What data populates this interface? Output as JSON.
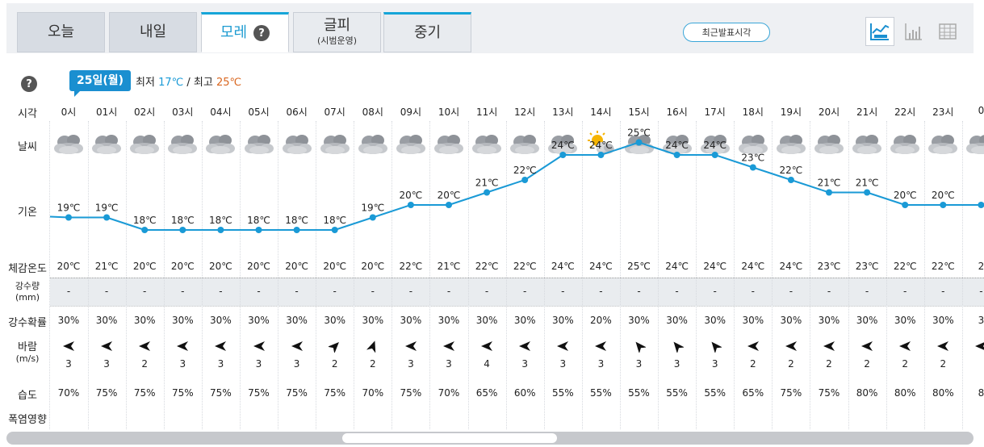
{
  "tabs": [
    {
      "label": "오늘",
      "sub": ""
    },
    {
      "label": "내일",
      "sub": ""
    },
    {
      "label": "모레",
      "sub": "",
      "help": "?"
    },
    {
      "label": "글피",
      "sub": "(시범운영)"
    },
    {
      "label": "중기",
      "sub": ""
    }
  ],
  "recent_button": "최근발표시각",
  "view_icons": [
    "line-chart-icon",
    "bar-chart-icon",
    "table-icon"
  ],
  "help": "?",
  "date": {
    "badge": "25일(월)",
    "min_label": "최저",
    "min": "17℃",
    "sep": "/",
    "max_label": "최고",
    "max": "25℃"
  },
  "row_labels": {
    "hour": "시각",
    "weather": "날씨",
    "temp": "기온",
    "feel": "체감온도",
    "precip": "강수량",
    "precip_unit": "(mm)",
    "prob": "강수확률",
    "wind": "바람",
    "wind_unit": "(m/s)",
    "humidity": "습도",
    "heat": "폭염영향"
  },
  "colors": {
    "accent": "#1a8fd0",
    "min": "#1a9ad6",
    "max": "#d9661f",
    "line": "#1a9ad6"
  },
  "hours": [
    "0시",
    "01시",
    "02시",
    "03시",
    "04시",
    "05시",
    "06시",
    "07시",
    "08시",
    "09시",
    "10시",
    "11시",
    "12시",
    "13시",
    "14시",
    "15시",
    "16시",
    "17시",
    "18시",
    "19시",
    "20시",
    "21시",
    "22시",
    "23시",
    "0"
  ],
  "weather": [
    "cloudy",
    "cloudy",
    "cloudy",
    "cloudy",
    "cloudy",
    "cloudy",
    "cloudy",
    "cloudy",
    "cloudy",
    "cloudy",
    "cloudy",
    "cloudy",
    "cloudy",
    "cloudy",
    "partly-sunny",
    "cloudy",
    "cloudy",
    "cloudy",
    "cloudy",
    "cloudy",
    "cloudy",
    "cloudy",
    "cloudy",
    "cloudy",
    "cloudy"
  ],
  "temps": [
    19,
    19,
    18,
    18,
    18,
    18,
    18,
    18,
    19,
    20,
    20,
    21,
    22,
    24,
    24,
    25,
    24,
    24,
    23,
    22,
    21,
    21,
    20,
    20,
    20
  ],
  "temp_labels": [
    "19℃",
    "19℃",
    "18℃",
    "18℃",
    "18℃",
    "18℃",
    "18℃",
    "18℃",
    "19℃",
    "20℃",
    "20℃",
    "21℃",
    "22℃",
    "24℃",
    "24℃",
    "25℃",
    "24℃",
    "24℃",
    "23℃",
    "22℃",
    "21℃",
    "21℃",
    "20℃",
    "20℃",
    ""
  ],
  "feels": [
    "20℃",
    "21℃",
    "20℃",
    "20℃",
    "20℃",
    "20℃",
    "20℃",
    "20℃",
    "20℃",
    "22℃",
    "21℃",
    "22℃",
    "22℃",
    "24℃",
    "24℃",
    "25℃",
    "24℃",
    "24℃",
    "24℃",
    "24℃",
    "23℃",
    "23℃",
    "22℃",
    "22℃",
    "2"
  ],
  "precip": [
    "-",
    "-",
    "-",
    "-",
    "-",
    "-",
    "-",
    "-",
    "-",
    "-",
    "-",
    "-",
    "-",
    "-",
    "-",
    "-",
    "-",
    "-",
    "-",
    "-",
    "-",
    "-",
    "-",
    "-",
    "-"
  ],
  "prob": [
    "30%",
    "30%",
    "30%",
    "30%",
    "30%",
    "30%",
    "30%",
    "30%",
    "30%",
    "30%",
    "30%",
    "30%",
    "30%",
    "30%",
    "20%",
    "30%",
    "30%",
    "30%",
    "30%",
    "30%",
    "30%",
    "30%",
    "30%",
    "30%",
    "3"
  ],
  "wind_dir_deg": [
    270,
    270,
    270,
    270,
    270,
    270,
    270,
    45,
    20,
    270,
    270,
    270,
    270,
    270,
    270,
    320,
    320,
    320,
    270,
    270,
    270,
    270,
    270,
    270,
    270
  ],
  "wind_speed": [
    "3",
    "3",
    "2",
    "3",
    "3",
    "3",
    "3",
    "2",
    "2",
    "3",
    "3",
    "4",
    "3",
    "3",
    "3",
    "3",
    "3",
    "3",
    "2",
    "2",
    "2",
    "2",
    "2",
    "2",
    ""
  ],
  "humidity": [
    "70%",
    "75%",
    "75%",
    "75%",
    "75%",
    "75%",
    "75%",
    "75%",
    "70%",
    "75%",
    "70%",
    "65%",
    "60%",
    "55%",
    "55%",
    "55%",
    "55%",
    "55%",
    "65%",
    "75%",
    "75%",
    "80%",
    "80%",
    "80%",
    "8"
  ]
}
